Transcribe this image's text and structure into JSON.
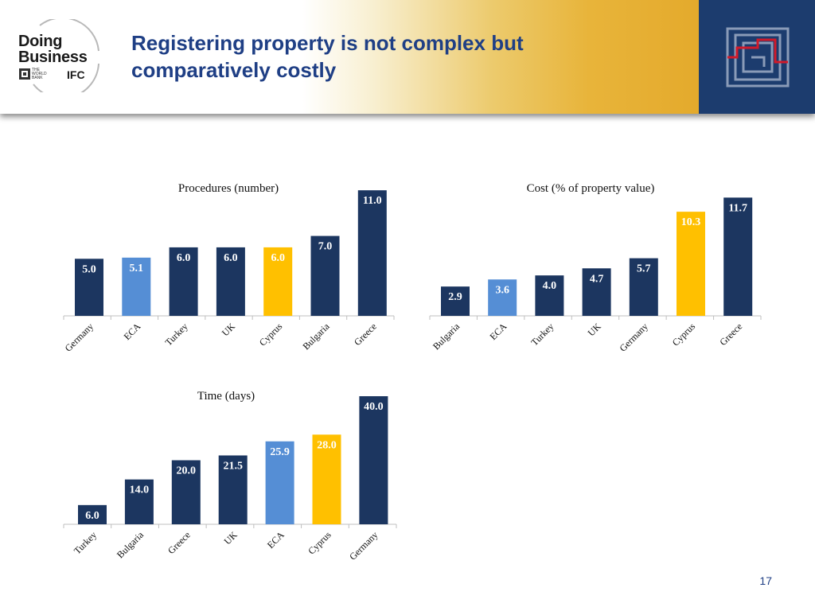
{
  "header": {
    "title": "Registering property is not complex but comparatively costly",
    "logo_line1": "Doing",
    "logo_line2": "Business",
    "logo_sub_lines": [
      "THE",
      "WORLD",
      "BANK"
    ],
    "logo_ifc": "IFC"
  },
  "footer": {
    "page_number": "17"
  },
  "colors": {
    "navy": "#1c3660",
    "eca_blue": "#558ed5",
    "cyprus_gold": "#ffc000",
    "label_white": "#ffffff",
    "label_on_gold": "#ffffff"
  },
  "chart_data": [
    {
      "id": "procedures",
      "type": "bar",
      "title": "Procedures (number)",
      "categories": [
        "Germany",
        "ECA",
        "Turkey",
        "UK",
        "Cyprus",
        "Bulgaria",
        "Greece"
      ],
      "values": [
        5.0,
        5.1,
        6.0,
        6.0,
        6.0,
        7.0,
        11.0
      ],
      "value_labels": [
        "5.0",
        "5.1",
        "6.0",
        "6.0",
        "6.0",
        "7.0",
        "11.0"
      ],
      "bar_roles": [
        "country",
        "eca",
        "country",
        "country",
        "cyprus",
        "country",
        "country"
      ],
      "xlabel": "",
      "ylabel": "",
      "ylim": [
        0,
        11.5
      ],
      "grid": false,
      "legend": "none"
    },
    {
      "id": "cost",
      "type": "bar",
      "title": "Cost (% of property value)",
      "categories": [
        "Bulgaria",
        "ECA",
        "Turkey",
        "UK",
        "Germany",
        "Cyprus",
        "Greece"
      ],
      "values": [
        2.9,
        3.6,
        4.0,
        4.7,
        5.7,
        10.3,
        11.7
      ],
      "value_labels": [
        "2.9",
        "3.6",
        "4.0",
        "4.7",
        "5.7",
        "10.3",
        "11.7"
      ],
      "bar_roles": [
        "country",
        "eca",
        "country",
        "country",
        "country",
        "cyprus",
        "country"
      ],
      "xlabel": "",
      "ylabel": "",
      "ylim": [
        0,
        12.2
      ],
      "grid": false,
      "legend": "none"
    },
    {
      "id": "time",
      "type": "bar",
      "title": "Time (days)",
      "categories": [
        "Turkey",
        "Bulgaria",
        "Greece",
        "UK",
        "ECA",
        "Cyprus",
        "Germany"
      ],
      "values": [
        6.0,
        14.0,
        20.0,
        21.5,
        25.9,
        28.0,
        40.0
      ],
      "value_labels": [
        "6.0",
        "14.0",
        "20.0",
        "21.5",
        "25.9",
        "28.0",
        "40.0"
      ],
      "bar_roles": [
        "country",
        "country",
        "country",
        "country",
        "eca",
        "cyprus",
        "country"
      ],
      "xlabel": "",
      "ylabel": "",
      "ylim": [
        0,
        40.5
      ],
      "grid": false,
      "legend": "none"
    }
  ]
}
